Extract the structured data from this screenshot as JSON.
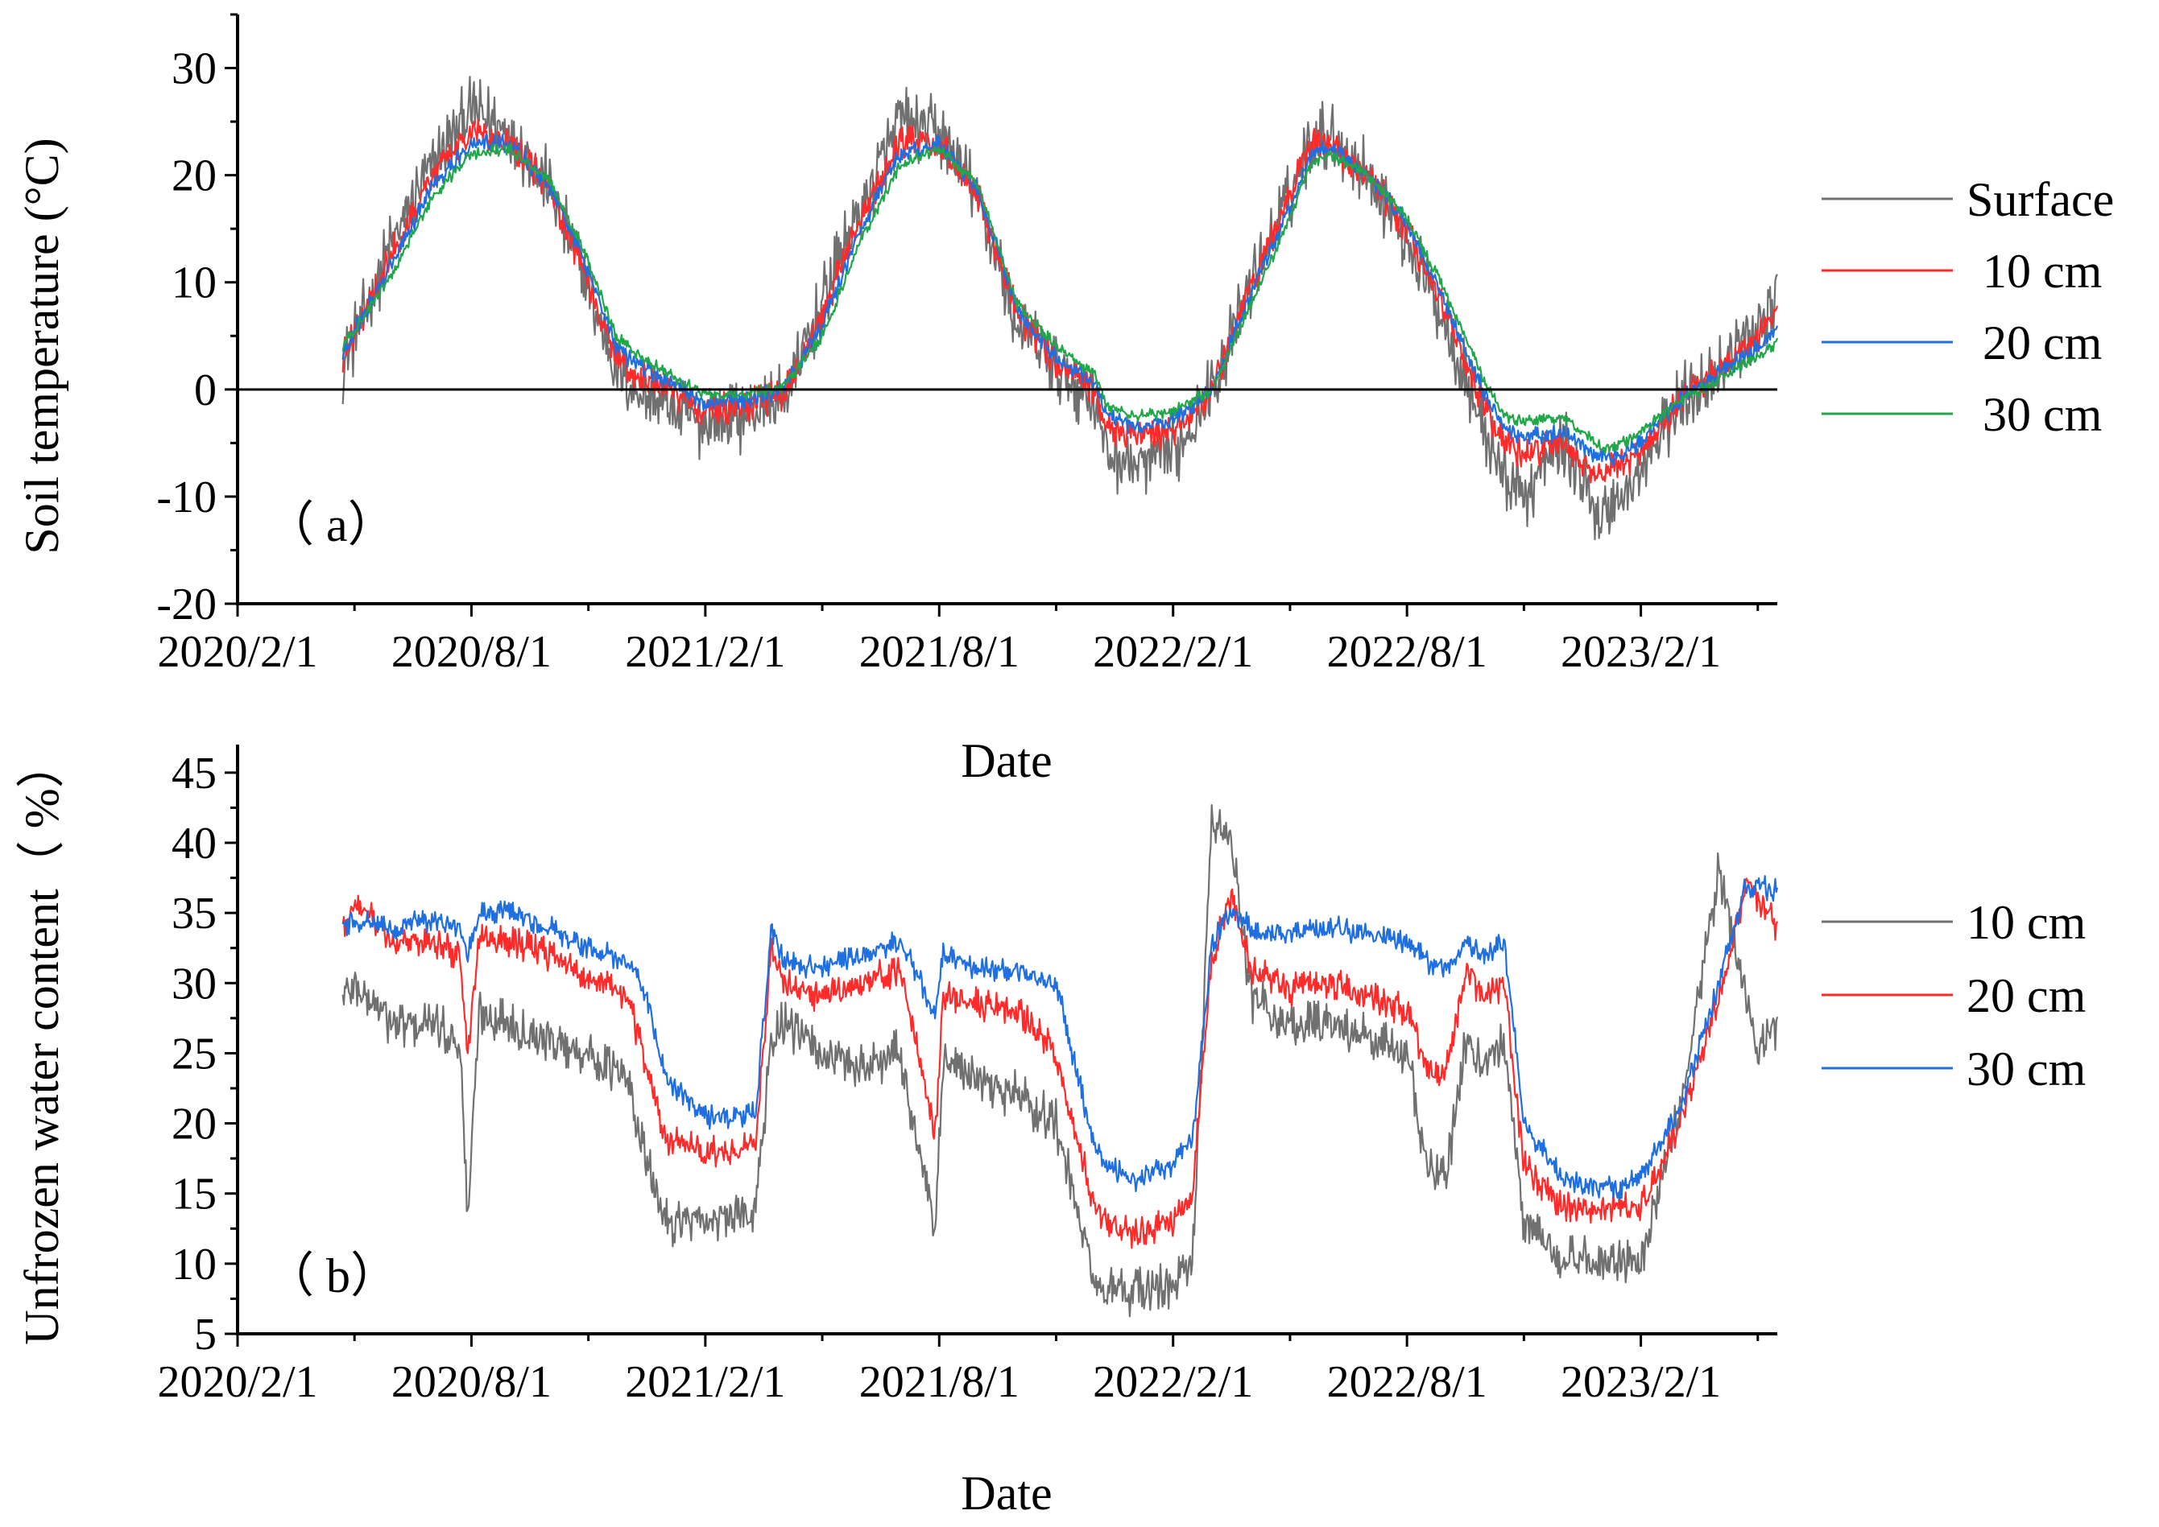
{
  "colors": {
    "surface": "#707070",
    "d10": "#ff2a2a",
    "d20": "#1f6fe0",
    "d30": "#22a64a",
    "gray": "#707070",
    "red": "#ff2a2a",
    "blue": "#1f6fe0"
  },
  "chart_data": [
    {
      "id": "a",
      "type": "line",
      "panel_tag": "（  a）",
      "xlabel": "Date",
      "ylabel": "Soil temperature (°C)",
      "xticks": [
        "2020/2/1",
        "2020/8/1",
        "2021/2/1",
        "2021/8/1",
        "2022/2/1",
        "2022/8/1",
        "2023/2/1"
      ],
      "xlim_months": [
        0,
        39.5
      ],
      "ylim": [
        -20,
        35
      ],
      "yticks": [
        -20,
        -10,
        0,
        10,
        20,
        30
      ],
      "zero_line": true,
      "x_unit": "months since 2020/2/1",
      "series": [
        {
          "name": "Surface",
          "color_key": "surface",
          "noise": 3.5,
          "x": [
            2.7,
            4,
            5,
            6,
            7,
            8,
            9,
            9.7,
            10,
            11,
            12,
            13,
            14,
            15,
            16,
            17,
            18,
            19,
            20,
            21,
            22,
            22.3,
            23,
            24,
            25,
            26,
            27,
            27.5,
            28,
            29,
            30,
            31,
            32,
            32.5,
            33,
            34,
            35,
            35.5,
            36,
            37,
            38,
            39,
            39.5
          ],
          "y": [
            2,
            14,
            21,
            26,
            24,
            19,
            9,
            2,
            0.5,
            -1.5,
            -3.5,
            -2.5,
            -1,
            8,
            17,
            25,
            24,
            18,
            6,
            2,
            -1,
            -6,
            -7,
            -6,
            0,
            10,
            18,
            23,
            24,
            20,
            14,
            6,
            -4,
            -8,
            -10,
            -5,
            -12,
            -10,
            -8,
            -1,
            2,
            6,
            9
          ]
        },
        {
          "name": "10 cm",
          "color_key": "d10",
          "noise": 1.6,
          "x": [
            2.7,
            4,
            5,
            6,
            7,
            8,
            9,
            9.7,
            10,
            11,
            12,
            13,
            14,
            15,
            16,
            17,
            18,
            19,
            20,
            21,
            22,
            22.3,
            23,
            24,
            25,
            26,
            27,
            27.5,
            28,
            29,
            30,
            31,
            32,
            32.5,
            33,
            34,
            35,
            35.5,
            36,
            37,
            38,
            39,
            39.5
          ],
          "y": [
            3,
            13,
            20,
            24,
            23,
            19,
            10,
            3,
            2,
            0,
            -2,
            -1.5,
            -0.5,
            7,
            16,
            23,
            23,
            18,
            7,
            2.5,
            0,
            -3.5,
            -4.5,
            -4,
            0,
            10,
            18,
            23,
            23,
            20,
            15,
            7,
            -2,
            -5,
            -6,
            -5,
            -8,
            -7,
            -6,
            -1,
            2,
            5,
            7
          ]
        },
        {
          "name": "20 cm",
          "color_key": "d20",
          "noise": 0.9,
          "x": [
            2.7,
            4,
            5,
            6,
            7,
            8,
            9,
            9.7,
            10,
            11,
            12,
            13,
            14,
            15,
            16,
            17,
            18,
            19,
            20,
            21,
            22,
            22.3,
            23,
            24,
            25,
            26,
            27,
            27.5,
            28,
            29,
            30,
            31,
            32,
            32.5,
            33,
            34,
            35,
            35.5,
            36,
            37,
            38,
            39,
            39.5
          ],
          "y": [
            3.5,
            12,
            19,
            23,
            23,
            19,
            11,
            4,
            3,
            0.8,
            -1.2,
            -1,
            0,
            6,
            15,
            22,
            23,
            18.5,
            7.5,
            3,
            0.5,
            -2.5,
            -3.5,
            -3,
            0,
            9,
            17,
            22,
            22.5,
            20,
            15.5,
            8,
            -0.5,
            -3.5,
            -4.5,
            -4,
            -6.5,
            -6,
            -5,
            -1,
            1.5,
            4,
            5.5
          ]
        },
        {
          "name": "30 cm",
          "color_key": "d30",
          "noise": 0.6,
          "x": [
            2.7,
            4,
            5,
            6,
            7,
            8,
            9,
            9.7,
            10,
            11,
            12,
            13,
            14,
            15,
            16,
            17,
            18,
            19,
            20,
            21,
            22,
            22.3,
            23,
            24,
            25,
            26,
            27,
            27.5,
            28,
            29,
            30,
            31,
            32,
            32.5,
            33,
            34,
            35,
            35.5,
            36,
            37,
            38,
            39,
            39.5
          ],
          "y": [
            4,
            11,
            18,
            22,
            22.5,
            19.5,
            12,
            5,
            4,
            1.5,
            -0.5,
            -0.5,
            0.3,
            5,
            14,
            21,
            22.5,
            19,
            8,
            4,
            1.5,
            -1.5,
            -2.5,
            -2,
            0,
            8,
            16,
            21,
            22,
            20,
            16,
            9,
            0.5,
            -2.5,
            -3,
            -2.5,
            -5.5,
            -5,
            -4,
            -1,
            1,
            3,
            4.5
          ]
        }
      ]
    },
    {
      "id": "b",
      "type": "line",
      "panel_tag": "（  b）",
      "xlabel": "Date",
      "ylabel": "Unfrozen water content（ %）",
      "xticks": [
        "2020/2/1",
        "2020/8/1",
        "2021/2/1",
        "2021/8/1",
        "2022/2/1",
        "2022/8/1",
        "2023/2/1"
      ],
      "xlim_months": [
        0,
        39.5
      ],
      "ylim": [
        5,
        47
      ],
      "yticks": [
        5,
        10,
        15,
        20,
        25,
        30,
        35,
        40,
        45
      ],
      "x_unit": "months since 2020/2/1",
      "series": [
        {
          "name": "10 cm",
          "color_key": "gray",
          "noise": 1.8,
          "x": [
            2.7,
            3,
            4,
            5,
            5.7,
            5.9,
            6.2,
            7,
            8,
            9,
            10,
            10.5,
            11,
            12,
            13,
            13.3,
            13.7,
            14,
            15,
            16,
            17,
            17.9,
            18.1,
            18.5,
            19,
            20,
            21,
            22,
            22.3,
            23,
            24,
            24.5,
            25,
            25.5,
            26,
            27,
            28,
            29,
            30,
            30.5,
            31,
            31.5,
            32,
            32.5,
            33,
            34,
            35,
            35.5,
            36,
            37,
            38,
            38.7,
            39,
            39.5
          ],
          "y": [
            29,
            30,
            27,
            27,
            26,
            13,
            28,
            27,
            26,
            25,
            23,
            17,
            13,
            13,
            13.5,
            14,
            26,
            27,
            25,
            24,
            25,
            12,
            24,
            24,
            23,
            22,
            20,
            8.5,
            8,
            8,
            8.5,
            10,
            42,
            40,
            29,
            27,
            27,
            26,
            25,
            17,
            16,
            26,
            24,
            26,
            13,
            10.5,
            10,
            10,
            10,
            21,
            38,
            29,
            25,
            27
          ]
        },
        {
          "name": "20 cm",
          "color_key": "red",
          "noise": 1.2,
          "x": [
            2.7,
            3,
            4,
            5,
            5.7,
            5.9,
            6.2,
            7,
            8,
            9,
            10,
            10.5,
            11,
            12,
            13,
            13.3,
            13.7,
            14,
            15,
            16,
            17,
            17.9,
            18.1,
            18.5,
            19,
            20,
            21,
            22,
            22.3,
            23,
            24,
            24.5,
            25,
            25.5,
            26,
            27,
            28,
            29,
            30,
            30.5,
            31,
            31.5,
            32,
            32.5,
            33,
            34,
            35,
            35.5,
            36,
            37,
            38,
            38.7,
            39,
            39.5
          ],
          "y": [
            34,
            36,
            33,
            33,
            32,
            25,
            33,
            33,
            32,
            30.5,
            29,
            24,
            19,
            18,
            18.2,
            18.5,
            33,
            30,
            29,
            30,
            31,
            19,
            29,
            29,
            28.5,
            28,
            25,
            14,
            13,
            12,
            13,
            15,
            32,
            36,
            31,
            29.5,
            30,
            29,
            28,
            24,
            23.5,
            31,
            29,
            30,
            17,
            14,
            14,
            14,
            14,
            20,
            29,
            37,
            36,
            34
          ]
        },
        {
          "name": "30 cm",
          "color_key": "blue",
          "noise": 0.9,
          "x": [
            2.7,
            3,
            4,
            5,
            5.7,
            5.9,
            6.2,
            7,
            8,
            9,
            10,
            10.5,
            11,
            12,
            13,
            13.3,
            13.7,
            14,
            15,
            16,
            17,
            17.9,
            18.1,
            18.5,
            19,
            20,
            21,
            22,
            22.3,
            23,
            24,
            24.5,
            25,
            25.5,
            26,
            27,
            28,
            29,
            30,
            30.5,
            31,
            31.5,
            32,
            32.5,
            33,
            34,
            35,
            35.5,
            36,
            37,
            38,
            38.7,
            39,
            39.5
          ],
          "y": [
            34,
            34.5,
            34,
            34.5,
            34,
            32,
            35,
            35,
            34,
            32.5,
            31.5,
            29,
            23,
            20.5,
            20.5,
            21,
            34,
            31.5,
            31,
            32,
            33,
            28,
            32,
            31.5,
            31,
            31,
            30,
            18,
            17,
            16,
            17,
            19,
            33,
            35,
            34,
            33.5,
            34,
            33.5,
            33,
            31.5,
            31,
            33,
            32,
            33,
            20,
            16,
            15.5,
            15.5,
            16,
            21,
            30,
            37,
            37,
            36.5
          ]
        }
      ]
    }
  ]
}
